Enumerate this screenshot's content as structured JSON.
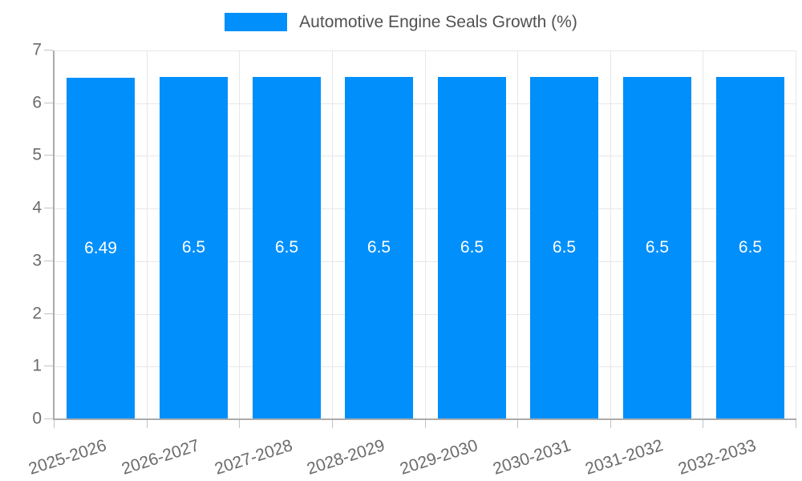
{
  "legend": {
    "position": "top",
    "items": [
      {
        "label": "Automotive Engine Seals Growth (%)"
      }
    ]
  },
  "chart_data": {
    "type": "bar",
    "title": "",
    "xlabel": "",
    "ylabel": "",
    "categories": [
      "2025-2026",
      "2026-2027",
      "2027-2028",
      "2028-2029",
      "2029-2030",
      "2030-2031",
      "2031-2032",
      "2032-2033"
    ],
    "series": [
      {
        "name": "Automotive Engine Seals Growth (%)",
        "values": [
          6.49,
          6.5,
          6.5,
          6.5,
          6.5,
          6.5,
          6.5,
          6.5
        ],
        "value_labels": [
          "6.49",
          "6.5",
          "6.5",
          "6.5",
          "6.5",
          "6.5",
          "6.5",
          "6.5"
        ]
      }
    ],
    "ylim": [
      0,
      7
    ],
    "yticks": [
      0,
      1,
      2,
      3,
      4,
      5,
      6,
      7
    ],
    "ytick_labels": [
      "0",
      "1",
      "2",
      "3",
      "4",
      "5",
      "6",
      "7"
    ],
    "grid": true,
    "legend_position": "top",
    "x_label_rotation_deg": -18,
    "data_label_position": "middle"
  },
  "style": {
    "bar_color": "#008FFB",
    "data_label_color": "#FFFFFF",
    "grid_color": "#E7E7E7",
    "axis_color": "#ABABAB",
    "tick_mark_color": "#C2C2C2",
    "tick_text_color": "#6B6B6B",
    "legend_text_color": "#515151",
    "background_color": "#FFFFFF"
  }
}
